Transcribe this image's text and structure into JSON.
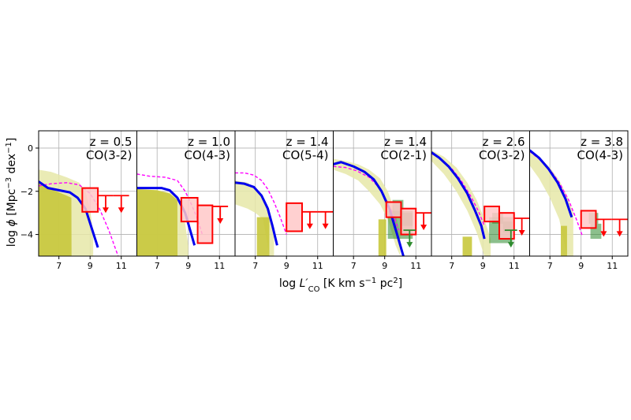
{
  "chart_data": {
    "type": "line",
    "xlabel_parts": [
      "log ",
      "L′",
      "CO",
      " [K km s",
      "−1",
      " pc",
      "2",
      "]"
    ],
    "ylabel_parts": [
      "log ",
      "ϕ",
      " [Mpc",
      "−3",
      " dex",
      "−1",
      "]"
    ],
    "ylim": [
      -5,
      0.8
    ],
    "yticks": [
      0,
      -2,
      -4
    ],
    "ytick_labels": [
      "0",
      "−2",
      "−4"
    ],
    "grid": true,
    "colors": {
      "model": "#0000ee",
      "dashed": "#ff00ff",
      "box": "#ff0000",
      "box_fill": "#ffc8c8",
      "green": "#2e8b2e",
      "band_light": "#e6e8a8",
      "band_dark": "#c8c83c"
    },
    "panels": [
      {
        "z_label": "z = 0.5",
        "line_label": "CO(3-2)",
        "xlim": [
          5.7,
          12
        ],
        "xticks": [
          7,
          9,
          11
        ],
        "band": [
          [
            5.7,
            -1.0,
            -5.0
          ],
          [
            6.5,
            -1.1,
            -5.0
          ],
          [
            7.5,
            -1.35,
            -5.0
          ],
          [
            8.3,
            -1.6,
            -5.0
          ],
          [
            8.7,
            -2.0,
            -5.0
          ],
          [
            9.0,
            -2.8,
            -5.0
          ],
          [
            9.2,
            -4.0,
            -5.0
          ]
        ],
        "dark_band": [
          [
            5.7,
            -1.5,
            -5.0
          ],
          [
            6.5,
            -1.9,
            -5.0
          ],
          [
            7.5,
            -2.2,
            -5.0
          ],
          [
            7.8,
            -2.3,
            -5.0
          ],
          [
            7.81,
            -5.0,
            -5.0
          ]
        ],
        "model": [
          [
            5.7,
            -1.55
          ],
          [
            6.3,
            -1.85
          ],
          [
            7.0,
            -1.95
          ],
          [
            7.7,
            -2.05
          ],
          [
            8.2,
            -2.3
          ],
          [
            8.7,
            -2.8
          ],
          [
            9.1,
            -3.7
          ],
          [
            9.5,
            -4.6
          ]
        ],
        "dashed": [
          [
            5.7,
            -1.75
          ],
          [
            6.5,
            -1.65
          ],
          [
            7.5,
            -1.6
          ],
          [
            8.3,
            -1.7
          ],
          [
            9.0,
            -2.1
          ],
          [
            9.6,
            -2.8
          ],
          [
            10.2,
            -3.8
          ],
          [
            10.8,
            -5.0
          ]
        ],
        "boxes": [
          [
            8.5,
            9.5,
            -1.85,
            -2.95
          ]
        ],
        "limits": [
          [
            9.5,
            10.5,
            -2.2
          ],
          [
            10.5,
            11.5,
            -2.2
          ]
        ],
        "green_boxes": [],
        "green_limits": []
      },
      {
        "z_label": "z = 1.0",
        "line_label": "CO(4-3)",
        "xlim": [
          5.7,
          12
        ],
        "xticks": [
          7,
          9,
          11
        ],
        "band": [
          [
            5.7,
            -1.9,
            -5.0
          ],
          [
            7.0,
            -1.95,
            -5.0
          ],
          [
            8.0,
            -2.1,
            -5.0
          ],
          [
            8.5,
            -2.5,
            -5.0
          ],
          [
            8.8,
            -3.5,
            -5.0
          ],
          [
            9.0,
            -4.5,
            -5.0
          ]
        ],
        "dark_band": [
          [
            5.7,
            -1.9,
            -5.0
          ],
          [
            7.0,
            -1.95,
            -5.0
          ],
          [
            7.8,
            -2.1,
            -5.0
          ],
          [
            8.3,
            -2.4,
            -5.0
          ],
          [
            8.31,
            -5.0,
            -5.0
          ]
        ],
        "model": [
          [
            5.7,
            -1.85
          ],
          [
            6.5,
            -1.85
          ],
          [
            7.3,
            -1.85
          ],
          [
            7.8,
            -1.95
          ],
          [
            8.3,
            -2.3
          ],
          [
            8.8,
            -3.0
          ],
          [
            9.2,
            -4.0
          ],
          [
            9.4,
            -4.5
          ]
        ],
        "dashed": [
          [
            5.7,
            -1.2
          ],
          [
            6.5,
            -1.3
          ],
          [
            7.5,
            -1.35
          ],
          [
            8.3,
            -1.5
          ],
          [
            8.8,
            -2.0
          ],
          [
            9.2,
            -2.6
          ],
          [
            9.6,
            -3.3
          ],
          [
            9.9,
            -4.0
          ]
        ],
        "boxes": [
          [
            8.55,
            9.6,
            -2.3,
            -3.4
          ],
          [
            9.6,
            10.55,
            -2.65,
            -4.4
          ]
        ],
        "limits": [
          [
            10.55,
            11.55,
            -2.7
          ]
        ],
        "green_boxes": [],
        "green_limits": []
      },
      {
        "z_label": "z = 1.4",
        "line_label": "CO(5-4)",
        "xlim": [
          5.7,
          12
        ],
        "xticks": [
          7,
          9,
          11
        ],
        "band": [
          [
            5.7,
            -1.5,
            -2.6
          ],
          [
            6.5,
            -1.6,
            -2.8
          ],
          [
            7.0,
            -1.9,
            -3.0
          ],
          [
            7.5,
            -2.3,
            -3.3
          ],
          [
            7.9,
            -3.0,
            -5.0
          ],
          [
            8.2,
            -4.0,
            -5.0
          ]
        ],
        "dark_band": [
          [
            7.1,
            -3.2,
            -5.0
          ],
          [
            7.9,
            -3.2,
            -5.0
          ]
        ],
        "model": [
          [
            5.7,
            -1.6
          ],
          [
            6.3,
            -1.65
          ],
          [
            6.9,
            -1.8
          ],
          [
            7.4,
            -2.2
          ],
          [
            7.8,
            -2.8
          ],
          [
            8.1,
            -3.6
          ],
          [
            8.4,
            -4.5
          ]
        ],
        "dashed": [
          [
            5.7,
            -1.15
          ],
          [
            6.3,
            -1.15
          ],
          [
            6.9,
            -1.25
          ],
          [
            7.4,
            -1.5
          ],
          [
            7.8,
            -1.9
          ],
          [
            8.2,
            -2.5
          ],
          [
            8.6,
            -3.2
          ],
          [
            9.0,
            -4.0
          ]
        ],
        "boxes": [
          [
            9.0,
            10.0,
            -2.55,
            -3.85
          ]
        ],
        "limits": [
          [
            10.0,
            11.0,
            -2.95
          ],
          [
            11.0,
            12.0,
            -2.95
          ]
        ],
        "green_boxes": [],
        "green_limits": []
      },
      {
        "z_label": "z = 1.4",
        "line_label": "CO(2-1)",
        "xlim": [
          5.7,
          12
        ],
        "xticks": [
          7,
          9,
          11
        ],
        "band": [
          [
            5.7,
            -0.5,
            -1.0
          ],
          [
            6.5,
            -0.6,
            -1.2
          ],
          [
            7.3,
            -0.75,
            -1.5
          ],
          [
            8.0,
            -1.0,
            -2.0
          ],
          [
            8.7,
            -1.4,
            -2.6
          ],
          [
            9.2,
            -2.0,
            -3.3
          ],
          [
            9.7,
            -3.0,
            -4.5
          ],
          [
            10.0,
            -4.0,
            -5.0
          ]
        ],
        "dark_band": [
          [
            8.6,
            -3.3,
            -5.0
          ],
          [
            9.1,
            -3.3,
            -5.0
          ]
        ],
        "model": [
          [
            5.7,
            -0.75
          ],
          [
            6.2,
            -0.65
          ],
          [
            7.0,
            -0.85
          ],
          [
            7.7,
            -1.1
          ],
          [
            8.3,
            -1.45
          ],
          [
            8.8,
            -2.0
          ],
          [
            9.3,
            -2.8
          ],
          [
            9.8,
            -4.0
          ],
          [
            10.2,
            -5.0
          ]
        ],
        "dashed": [
          [
            5.7,
            -0.85
          ],
          [
            6.5,
            -0.9
          ],
          [
            7.2,
            -1.05
          ],
          [
            8.0,
            -1.35
          ],
          [
            8.6,
            -1.8
          ],
          [
            9.1,
            -2.4
          ],
          [
            9.5,
            -3.0
          ],
          [
            9.9,
            -3.8
          ]
        ],
        "boxes": [
          [
            9.1,
            10.05,
            -2.5,
            -3.2
          ],
          [
            10.05,
            11.0,
            -2.8,
            -4.0
          ]
        ],
        "limits": [
          [
            11.0,
            12.0,
            -3.0
          ]
        ],
        "green_boxes": [
          [
            9.5,
            10.2,
            -2.4,
            -3.1
          ],
          [
            9.2,
            10.8,
            -2.9,
            -4.2
          ],
          [
            10.1,
            10.8,
            -3.0,
            -3.6
          ]
        ],
        "green_limits": [
          [
            10.2,
            11.0,
            -3.8
          ]
        ]
      },
      {
        "z_label": "z = 2.6",
        "line_label": "CO(3-2)",
        "xlim": [
          5.7,
          12
        ],
        "xticks": [
          7,
          9,
          11
        ],
        "band": [
          [
            5.7,
            -0.1,
            -0.6
          ],
          [
            6.5,
            -0.4,
            -1.2
          ],
          [
            7.3,
            -0.9,
            -2.0
          ],
          [
            8.0,
            -1.6,
            -2.9
          ],
          [
            8.6,
            -2.4,
            -3.9
          ],
          [
            9.1,
            -3.3,
            -5.0
          ],
          [
            9.5,
            -4.2,
            -5.0
          ]
        ],
        "dark_band": [
          [
            7.7,
            -4.1,
            -5.0
          ],
          [
            8.3,
            -4.1,
            -5.0
          ]
        ],
        "model": [
          [
            5.7,
            -0.2
          ],
          [
            6.2,
            -0.45
          ],
          [
            6.8,
            -0.85
          ],
          [
            7.4,
            -1.4
          ],
          [
            8.0,
            -2.1
          ],
          [
            8.5,
            -2.9
          ],
          [
            8.9,
            -3.6
          ],
          [
            9.1,
            -4.2
          ]
        ],
        "dashed": [
          [
            5.7,
            -0.25
          ],
          [
            6.3,
            -0.5
          ],
          [
            7.0,
            -0.95
          ],
          [
            7.6,
            -1.5
          ],
          [
            8.2,
            -2.2
          ],
          [
            8.7,
            -2.9
          ],
          [
            9.1,
            -3.6
          ]
        ],
        "boxes": [
          [
            9.1,
            10.05,
            -2.7,
            -3.4
          ],
          [
            10.05,
            11.0,
            -3.0,
            -4.2
          ]
        ],
        "limits": [
          [
            11.0,
            12.0,
            -3.25
          ]
        ],
        "green_boxes": [
          [
            9.6,
            10.3,
            -3.0,
            -3.5
          ],
          [
            9.4,
            10.9,
            -3.2,
            -4.4
          ],
          [
            10.3,
            10.9,
            -3.4,
            -3.9
          ]
        ],
        "green_limits": [
          [
            10.4,
            11.2,
            -3.8
          ]
        ]
      },
      {
        "z_label": "z = 3.8",
        "line_label": "CO(4-3)",
        "xlim": [
          5.7,
          12
        ],
        "xticks": [
          7,
          9,
          11
        ],
        "band": [
          [
            5.7,
            -0.1,
            -0.8
          ],
          [
            6.3,
            -0.4,
            -1.4
          ],
          [
            7.0,
            -0.9,
            -2.3
          ],
          [
            7.6,
            -1.5,
            -3.3
          ],
          [
            8.1,
            -2.2,
            -5.0
          ],
          [
            8.5,
            -3.0,
            -5.0
          ]
        ],
        "dark_band": [
          [
            7.7,
            -3.6,
            -5.0
          ],
          [
            8.1,
            -3.6,
            -5.0
          ]
        ],
        "model": [
          [
            5.7,
            -0.1
          ],
          [
            6.3,
            -0.45
          ],
          [
            6.9,
            -0.95
          ],
          [
            7.5,
            -1.6
          ],
          [
            8.0,
            -2.35
          ],
          [
            8.4,
            -3.2
          ]
        ],
        "dashed": [
          [
            5.7,
            -0.15
          ],
          [
            6.3,
            -0.5
          ],
          [
            7.0,
            -1.0
          ],
          [
            7.6,
            -1.6
          ],
          [
            8.2,
            -2.4
          ],
          [
            8.7,
            -3.3
          ],
          [
            9.1,
            -4.1
          ]
        ],
        "boxes": [
          [
            9.0,
            9.95,
            -2.9,
            -3.7
          ]
        ],
        "limits": [
          [
            9.95,
            10.95,
            -3.3
          ],
          [
            10.95,
            12.0,
            -3.3
          ]
        ],
        "green_boxes": [
          [
            9.5,
            10.1,
            -3.0,
            -3.5
          ],
          [
            9.6,
            10.3,
            -3.5,
            -4.2
          ]
        ],
        "green_limits": []
      }
    ]
  }
}
